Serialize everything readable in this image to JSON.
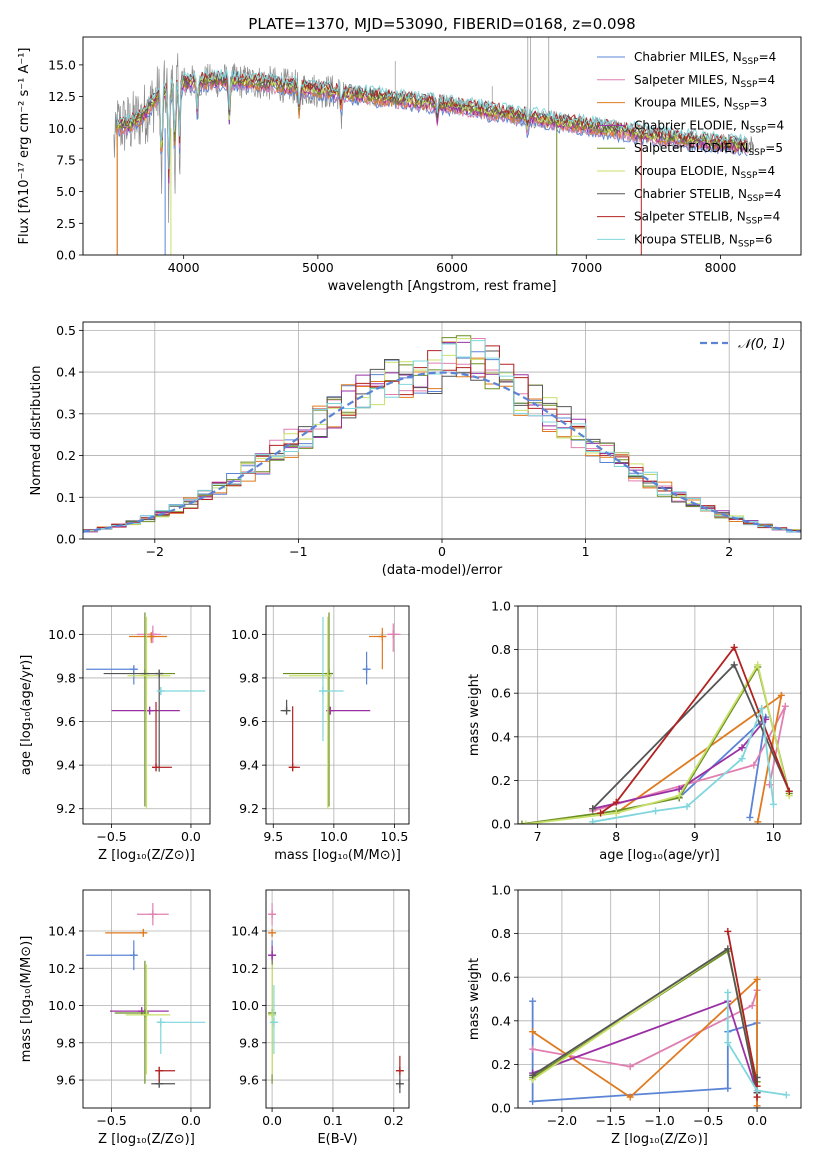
{
  "colors": {
    "chabrier_miles": "#5b84d6",
    "salpeter_miles": "#e07fb1",
    "kroupa_miles": "#e07a1f",
    "chabrier_elodie": "#9b30a5",
    "salpeter_elodie": "#6b8e23",
    "kroupa_elodie": "#c8e06a",
    "chabrier_stelib": "#555555",
    "salpeter_stelib": "#b22222",
    "kroupa_stelib": "#7fd6dc",
    "grid": "#b0b0b0",
    "gaussian": "#5b84d6"
  },
  "chart_data": [
    {
      "id": "spectrum",
      "type": "line",
      "title": "PLATE=1370, MJD=53090, FIBERID=0168, z=0.098",
      "xlabel": "wavelength [Angstrom, rest frame]",
      "ylabel": "Flux [fλ10⁻¹⁷ erg cm⁻² s⁻¹ A⁻¹]",
      "xlim": [
        3250,
        8600
      ],
      "ylim": [
        0,
        17.2
      ],
      "xticks": [
        "4000",
        "5000",
        "6000",
        "7000",
        "8000"
      ],
      "yticks": [
        "0.0",
        "2.5",
        "5.0",
        "7.5",
        "10.0",
        "12.5",
        "15.0"
      ],
      "grid": false,
      "legend_position": "top-right",
      "continuum_points": [
        {
          "x": 3500,
          "y": 10.2
        },
        {
          "x": 3600,
          "y": 10.3
        },
        {
          "x": 3700,
          "y": 11.0
        },
        {
          "x": 3800,
          "y": 12.5
        },
        {
          "x": 3900,
          "y": 13.0
        },
        {
          "x": 4000,
          "y": 13.6
        },
        {
          "x": 4300,
          "y": 13.8
        },
        {
          "x": 4600,
          "y": 13.6
        },
        {
          "x": 5000,
          "y": 13.0
        },
        {
          "x": 5500,
          "y": 12.4
        },
        {
          "x": 6000,
          "y": 11.8
        },
        {
          "x": 6500,
          "y": 11.0
        },
        {
          "x": 7000,
          "y": 10.2
        },
        {
          "x": 7500,
          "y": 9.4
        },
        {
          "x": 8000,
          "y": 8.8
        },
        {
          "x": 8200,
          "y": 8.7
        }
      ],
      "series": [
        {
          "name": "Chabrier MILES, N",
          "sub": "SSP",
          "n": "=4",
          "key": "chabrier_miles"
        },
        {
          "name": "Salpeter MILES, N",
          "sub": "SSP",
          "n": "=4",
          "key": "salpeter_miles"
        },
        {
          "name": "Kroupa MILES, N",
          "sub": "SSP",
          "n": "=3",
          "key": "kroupa_miles"
        },
        {
          "name": "Chabrier ELODIE, N",
          "sub": "SSP",
          "n": "=4",
          "key": "chabrier_elodie"
        },
        {
          "name": "Salpeter ELODIE, N",
          "sub": "SSP",
          "n": "=5",
          "key": "salpeter_elodie"
        },
        {
          "name": "Kroupa ELODIE, N",
          "sub": "SSP",
          "n": "=4",
          "key": "kroupa_elodie"
        },
        {
          "name": "Chabrier STELIB, N",
          "sub": "SSP",
          "n": "=4",
          "key": "chabrier_stelib"
        },
        {
          "name": "Salpeter STELIB, N",
          "sub": "SSP",
          "n": "=4",
          "key": "salpeter_stelib"
        },
        {
          "name": "Kroupa STELIB, N",
          "sub": "SSP",
          "n": "=6",
          "key": "kroupa_stelib"
        }
      ]
    },
    {
      "id": "residuals",
      "type": "line",
      "xlabel": "(data-model)/error",
      "ylabel": "Normed distribution",
      "xlim": [
        -2.5,
        2.5
      ],
      "ylim": [
        0,
        0.52
      ],
      "xticks": [
        "−2",
        "−1",
        "0",
        "1",
        "2"
      ],
      "yticks": [
        "0.0",
        "0.1",
        "0.2",
        "0.3",
        "0.4",
        "0.5"
      ],
      "grid": true,
      "legend_position": "top-right",
      "gaussian_label": "𝒩(0, 1)",
      "bin_width": 0.1,
      "bin_start": -2.5
    },
    {
      "id": "age_vs_z",
      "type": "scatter",
      "xlabel": "Z [log₁₀(Z/Z⊙)]",
      "ylabel": "age  [log₁₀(age/yr)]",
      "xlim": [
        -0.68,
        0.12
      ],
      "ylim": [
        9.13,
        10.13
      ],
      "xticks": [
        "−0.5",
        "0.0"
      ],
      "yticks": [
        "9.2",
        "9.4",
        "9.6",
        "9.8",
        "10.0"
      ],
      "grid": true,
      "points": [
        {
          "key": "chabrier_miles",
          "x": -0.36,
          "xerr": [
            0.3,
            0.0
          ],
          "y": 9.84,
          "yerr": [
            0.07,
            0.0
          ]
        },
        {
          "key": "salpeter_miles",
          "x": -0.24,
          "xerr": [
            0.1,
            0.05
          ],
          "y": 10.0,
          "yerr": [
            0.04,
            0.04
          ]
        },
        {
          "key": "kroupa_miles",
          "x": -0.25,
          "xerr": [
            0.14,
            0.1
          ],
          "y": 9.99,
          "yerr": [
            0.03,
            0.02
          ]
        },
        {
          "key": "chabrier_elodie",
          "x": -0.26,
          "xerr": [
            0.24,
            0.19
          ],
          "y": 9.65,
          "yerr": [
            0.0,
            0.0
          ]
        },
        {
          "key": "salpeter_elodie",
          "x": -0.29,
          "xerr": [
            0.04,
            0.19
          ],
          "y": 9.82,
          "yerr": [
            0.61,
            0.28
          ]
        },
        {
          "key": "kroupa_elodie",
          "x": -0.28,
          "xerr": [
            0.12,
            0.15
          ],
          "y": 9.81,
          "yerr": [
            0.61,
            0.27
          ]
        },
        {
          "key": "chabrier_stelib",
          "x": -0.2,
          "xerr": [
            0.35,
            0.0
          ],
          "y": 9.82,
          "yerr": [
            0.45,
            0.0
          ]
        },
        {
          "key": "salpeter_stelib",
          "x": -0.22,
          "xerr": [
            0.0,
            0.1
          ],
          "y": 9.39,
          "yerr": [
            0.0,
            0.3
          ]
        },
        {
          "key": "kroupa_stelib",
          "x": -0.19,
          "xerr": [
            0.0,
            0.28
          ],
          "y": 9.74,
          "yerr": [
            0.0,
            0.0
          ]
        }
      ]
    },
    {
      "id": "age_vs_mass",
      "type": "scatter",
      "xlabel": "mass [log₁₀(M/M⊙)]",
      "xlim": [
        9.44,
        10.62
      ],
      "ylim": [
        9.13,
        10.13
      ],
      "xticks": [
        "9.5",
        "10.0",
        "10.5"
      ],
      "yticks": [
        "9.2",
        "9.4",
        "9.6",
        "9.8",
        "10.0"
      ],
      "grid": true,
      "points": [
        {
          "key": "chabrier_miles",
          "x": 10.27,
          "xerr": [
            0.0,
            0.0
          ],
          "y": 9.84,
          "yerr": [
            0.07,
            0.08
          ]
        },
        {
          "key": "salpeter_miles",
          "x": 10.49,
          "xerr": [
            0.05,
            0.06
          ],
          "y": 10.0,
          "yerr": [
            0.08,
            0.05
          ]
        },
        {
          "key": "kroupa_miles",
          "x": 10.4,
          "xerr": [
            0.11,
            0.0
          ],
          "y": 9.99,
          "yerr": [
            0.15,
            0.04
          ]
        },
        {
          "key": "chabrier_elodie",
          "x": 9.97,
          "xerr": [
            0.0,
            0.33
          ],
          "y": 9.65,
          "yerr": [
            0.0,
            0.0
          ]
        },
        {
          "key": "salpeter_elodie",
          "x": 9.96,
          "xerr": [
            0.38,
            0.0
          ],
          "y": 9.82,
          "yerr": [
            0.61,
            0.28
          ]
        },
        {
          "key": "kroupa_elodie",
          "x": 9.95,
          "xerr": [
            0.32,
            0.0
          ],
          "y": 9.81,
          "yerr": [
            0.61,
            0.27
          ]
        },
        {
          "key": "chabrier_stelib",
          "x": 9.61,
          "xerr": [
            0.05,
            0.0
          ],
          "y": 9.65,
          "yerr": [
            0.0,
            0.05
          ]
        },
        {
          "key": "salpeter_stelib",
          "x": 9.66,
          "xerr": [
            0.0,
            0.06
          ],
          "y": 9.39,
          "yerr": [
            0.0,
            0.28
          ]
        },
        {
          "key": "kroupa_stelib",
          "x": 9.91,
          "xerr": [
            0.0,
            0.17
          ],
          "y": 9.74,
          "yerr": [
            0.23,
            0.34
          ]
        }
      ]
    },
    {
      "id": "weight_vs_age",
      "type": "line",
      "xlabel": "age  [log₁₀(age/yr)]",
      "ylabel": "mass weight",
      "xlim": [
        6.75,
        10.35
      ],
      "ylim": [
        0,
        1.0
      ],
      "xticks": [
        "7",
        "8",
        "9",
        "10"
      ],
      "yticks": [
        "0.0",
        "0.2",
        "0.4",
        "0.6",
        "0.8",
        "1.0"
      ],
      "grid": true,
      "series": [
        {
          "key": "chabrier_miles",
          "x": [
            8.8,
            9.9,
            9.7
          ],
          "y": [
            0.12,
            0.49,
            0.03
          ]
        },
        {
          "key": "salpeter_miles",
          "x": [
            7.7,
            9.75,
            10.15,
            9.95
          ],
          "y": [
            0.06,
            0.27,
            0.54,
            0.18
          ]
        },
        {
          "key": "kroupa_miles",
          "x": [
            8.0,
            10.1,
            9.8
          ],
          "y": [
            0.05,
            0.59,
            0.01
          ]
        },
        {
          "key": "chabrier_elodie",
          "x": [
            7.7,
            8.8,
            9.6,
            9.9
          ],
          "y": [
            0.07,
            0.16,
            0.35,
            0.48
          ]
        },
        {
          "key": "salpeter_elodie",
          "x": [
            6.8,
            8.0,
            8.8,
            9.8,
            10.2
          ],
          "y": [
            0.0,
            0.06,
            0.12,
            0.72,
            0.14
          ]
        },
        {
          "key": "kroupa_elodie",
          "x": [
            6.85,
            8.0,
            8.8,
            9.8,
            10.2
          ],
          "y": [
            0.0,
            0.05,
            0.13,
            0.73,
            0.13
          ]
        },
        {
          "key": "chabrier_stelib",
          "x": [
            7.7,
            9.5,
            10.2
          ],
          "y": [
            0.07,
            0.73,
            0.15
          ]
        },
        {
          "key": "salpeter_stelib",
          "x": [
            7.8,
            8.0,
            9.5,
            10.2
          ],
          "y": [
            0.05,
            0.1,
            0.81,
            0.15
          ]
        },
        {
          "key": "kroupa_stelib",
          "x": [
            7.7,
            8.5,
            8.9,
            9.6,
            9.85,
            10.0
          ],
          "y": [
            0.01,
            0.06,
            0.08,
            0.3,
            0.53,
            0.09
          ]
        }
      ]
    },
    {
      "id": "mass_vs_z",
      "type": "scatter",
      "xlabel": "Z [log₁₀(Z/Z⊙)]",
      "ylabel": "mass [log₁₀(M/M⊙)]",
      "xlim": [
        -0.68,
        0.12
      ],
      "ylim": [
        9.45,
        10.62
      ],
      "xticks": [
        "−0.5",
        "0.0"
      ],
      "yticks": [
        "9.6",
        "9.8",
        "10.0",
        "10.2",
        "10.4"
      ],
      "grid": true,
      "points": [
        {
          "key": "chabrier_miles",
          "x": -0.36,
          "xerr": [
            0.3,
            0.0
          ],
          "y": 10.27,
          "yerr": [
            0.08,
            0.08
          ]
        },
        {
          "key": "salpeter_miles",
          "x": -0.24,
          "xerr": [
            0.1,
            0.1
          ],
          "y": 10.49,
          "yerr": [
            0.06,
            0.06
          ]
        },
        {
          "key": "kroupa_miles",
          "x": -0.3,
          "xerr": [
            0.24,
            0.0
          ],
          "y": 10.39,
          "yerr": [
            0.0,
            0.0
          ]
        },
        {
          "key": "chabrier_elodie",
          "x": -0.31,
          "xerr": [
            0.2,
            0.17
          ],
          "y": 9.97,
          "yerr": [
            0.0,
            0.0
          ]
        },
        {
          "key": "salpeter_elodie",
          "x": -0.29,
          "xerr": [
            0.19,
            0.0
          ],
          "y": 9.96,
          "yerr": [
            0.38,
            0.28
          ]
        },
        {
          "key": "kroupa_elodie",
          "x": -0.28,
          "xerr": [
            0.13,
            0.15
          ],
          "y": 9.95,
          "yerr": [
            0.32,
            0.27
          ]
        },
        {
          "key": "chabrier_stelib",
          "x": -0.2,
          "xerr": [
            0.05,
            0.1
          ],
          "y": 9.58,
          "yerr": [
            0.0,
            0.05
          ]
        },
        {
          "key": "salpeter_stelib",
          "x": -0.2,
          "xerr": [
            0.0,
            0.1
          ],
          "y": 9.65,
          "yerr": [
            0.06,
            0.0
          ]
        },
        {
          "key": "kroupa_stelib",
          "x": -0.19,
          "xerr": [
            0.0,
            0.28
          ],
          "y": 9.91,
          "yerr": [
            0.17,
            0.0
          ]
        }
      ]
    },
    {
      "id": "mass_vs_ebv",
      "type": "scatter",
      "xlabel": "E(B-V)",
      "xlim": [
        -0.01,
        0.225
      ],
      "ylim": [
        9.45,
        10.62
      ],
      "xticks": [
        "0.0",
        "0.1",
        "0.2"
      ],
      "yticks": [
        "9.6",
        "9.8",
        "10.0",
        "10.2",
        "10.4"
      ],
      "grid": true,
      "points": [
        {
          "key": "chabrier_miles",
          "x": 0.0,
          "xerr": [
            0.0,
            0.0
          ],
          "y": 10.27,
          "yerr": [
            0.08,
            0.08
          ]
        },
        {
          "key": "salpeter_miles",
          "x": 0.0,
          "xerr": [
            0.0,
            0.0
          ],
          "y": 10.49,
          "yerr": [
            0.06,
            0.06
          ]
        },
        {
          "key": "kroupa_miles",
          "x": 0.0,
          "xerr": [
            0.0,
            0.0
          ],
          "y": 10.39,
          "yerr": [
            0.0,
            0.0
          ]
        },
        {
          "key": "chabrier_elodie",
          "x": 0.0,
          "xerr": [
            0.0,
            0.0
          ],
          "y": 10.27,
          "yerr": [
            0.05,
            0.05
          ]
        },
        {
          "key": "salpeter_elodie",
          "x": 0.0,
          "xerr": [
            0.0,
            0.0
          ],
          "y": 9.96,
          "yerr": [
            0.38,
            0.28
          ]
        },
        {
          "key": "kroupa_elodie",
          "x": 0.0,
          "xerr": [
            0.0,
            0.0
          ],
          "y": 9.95,
          "yerr": [
            0.32,
            0.27
          ]
        },
        {
          "key": "chabrier_stelib",
          "x": 0.21,
          "xerr": [
            0.0,
            0.0
          ],
          "y": 9.58,
          "yerr": [
            0.05,
            0.05
          ]
        },
        {
          "key": "salpeter_stelib",
          "x": 0.21,
          "xerr": [
            0.0,
            0.0
          ],
          "y": 9.65,
          "yerr": [
            0.0,
            0.08
          ]
        },
        {
          "key": "kroupa_stelib",
          "x": 0.003,
          "xerr": [
            0.0,
            0.0
          ],
          "y": 9.91,
          "yerr": [
            0.17,
            0.2
          ]
        }
      ]
    },
    {
      "id": "weight_vs_z",
      "type": "line",
      "xlabel": "Z [log₁₀(Z/Z⊙)]",
      "ylabel": "mass weight",
      "xlim": [
        -2.45,
        0.45
      ],
      "ylim": [
        0,
        1.0
      ],
      "xticks": [
        "−2.0",
        "−1.5",
        "−1.0",
        "−0.5",
        "0.0"
      ],
      "yticks": [
        "0.0",
        "0.2",
        "0.4",
        "0.6",
        "0.8",
        "1.0"
      ],
      "grid": true,
      "series": [
        {
          "key": "chabrier_miles",
          "x": [
            -2.3,
            -2.3,
            -0.3,
            -0.3,
            0.0,
            0.0
          ],
          "y": [
            0.49,
            0.03,
            0.09,
            0.35,
            0.39,
            0.0
          ]
        },
        {
          "key": "salpeter_miles",
          "x": [
            -2.3,
            -1.3,
            -0.05,
            0.0
          ],
          "y": [
            0.27,
            0.19,
            0.47,
            0.54
          ]
        },
        {
          "key": "kroupa_miles",
          "x": [
            -2.3,
            -1.3,
            0.0,
            0.0
          ],
          "y": [
            0.35,
            0.05,
            0.59,
            0.01
          ]
        },
        {
          "key": "chabrier_elodie",
          "x": [
            -2.3,
            -0.3,
            0.0
          ],
          "y": [
            0.16,
            0.49,
            0.07
          ]
        },
        {
          "key": "salpeter_elodie",
          "x": [
            -2.3,
            -0.3,
            0.0
          ],
          "y": [
            0.14,
            0.72,
            0.12
          ]
        },
        {
          "key": "kroupa_elodie",
          "x": [
            -2.3,
            -0.3,
            0.0
          ],
          "y": [
            0.13,
            0.73,
            0.1
          ]
        },
        {
          "key": "chabrier_stelib",
          "x": [
            -2.3,
            -0.3,
            0.0,
            0.0
          ],
          "y": [
            0.15,
            0.73,
            0.07,
            0.14
          ]
        },
        {
          "key": "salpeter_stelib",
          "x": [
            -0.3,
            0.0,
            0.0
          ],
          "y": [
            0.81,
            0.1,
            0.05
          ]
        },
        {
          "key": "kroupa_stelib",
          "x": [
            -0.3,
            -0.3,
            0.0,
            0.3
          ],
          "y": [
            0.53,
            0.3,
            0.08,
            0.06
          ]
        }
      ]
    }
  ]
}
